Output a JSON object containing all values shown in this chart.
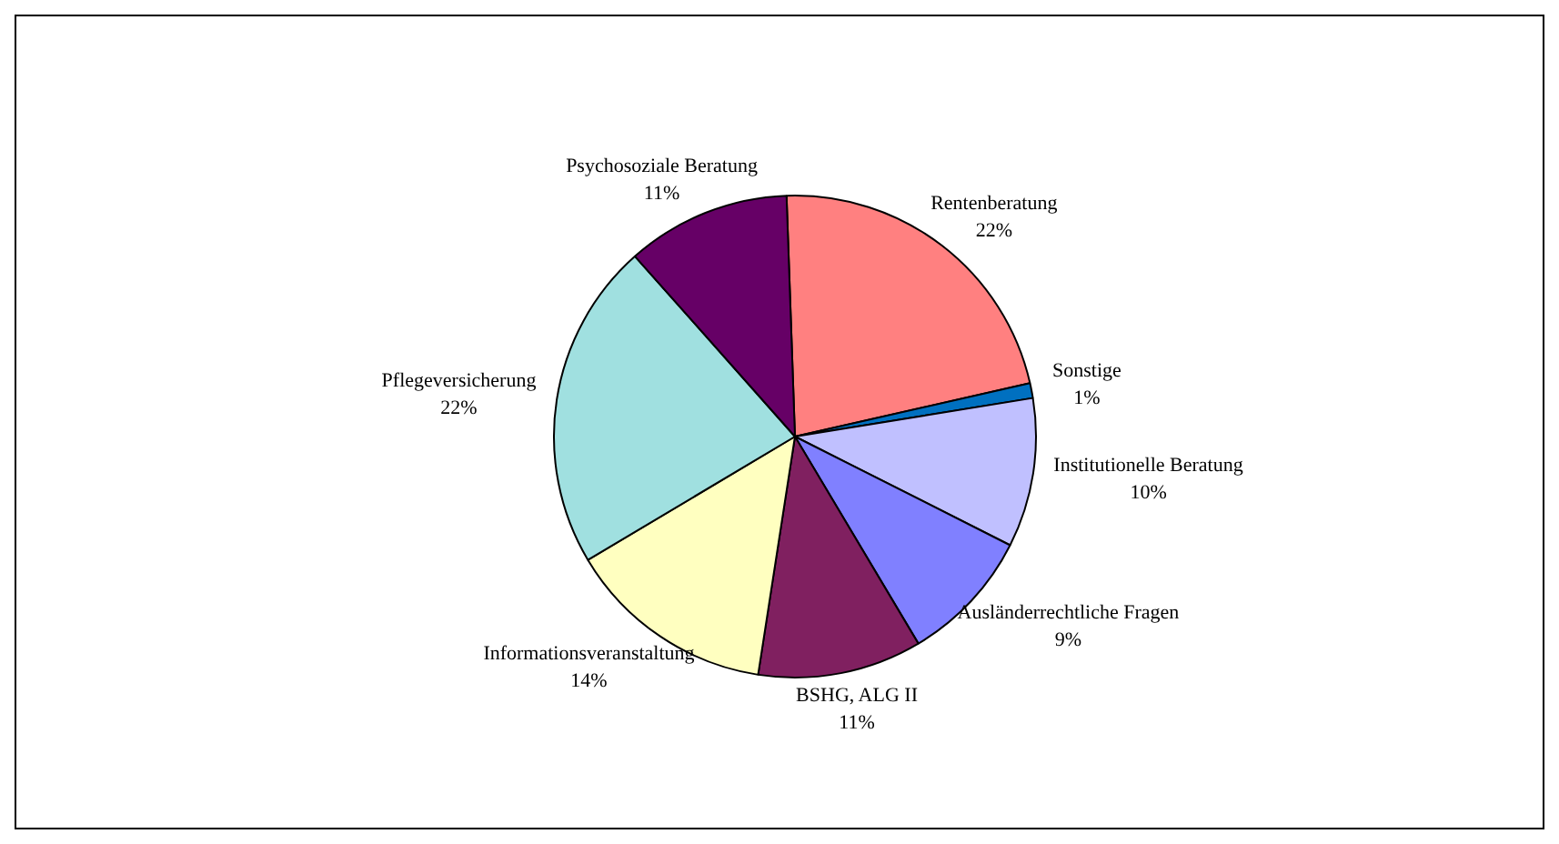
{
  "chart_data": {
    "type": "pie",
    "categories": [
      "Rentenberatung",
      "Sonstige",
      "Institutionelle Beratung",
      "Ausländerrechtliche Fragen",
      "BSHG, ALG II",
      "Informationsveranstaltung",
      "Pflegeversicherung",
      "Psychosoziale Beratung"
    ],
    "values": [
      22,
      1,
      10,
      9,
      11,
      14,
      22,
      11
    ],
    "colors": [
      "#ff8080",
      "#0070c0",
      "#c0c0ff",
      "#8080ff",
      "#802060",
      "#ffffc0",
      "#a0e0e0",
      "#660066"
    ],
    "value_labels": [
      "22%",
      "1%",
      "10%",
      "9%",
      "11%",
      "14%",
      "22%",
      "11%"
    ],
    "legend": false
  }
}
